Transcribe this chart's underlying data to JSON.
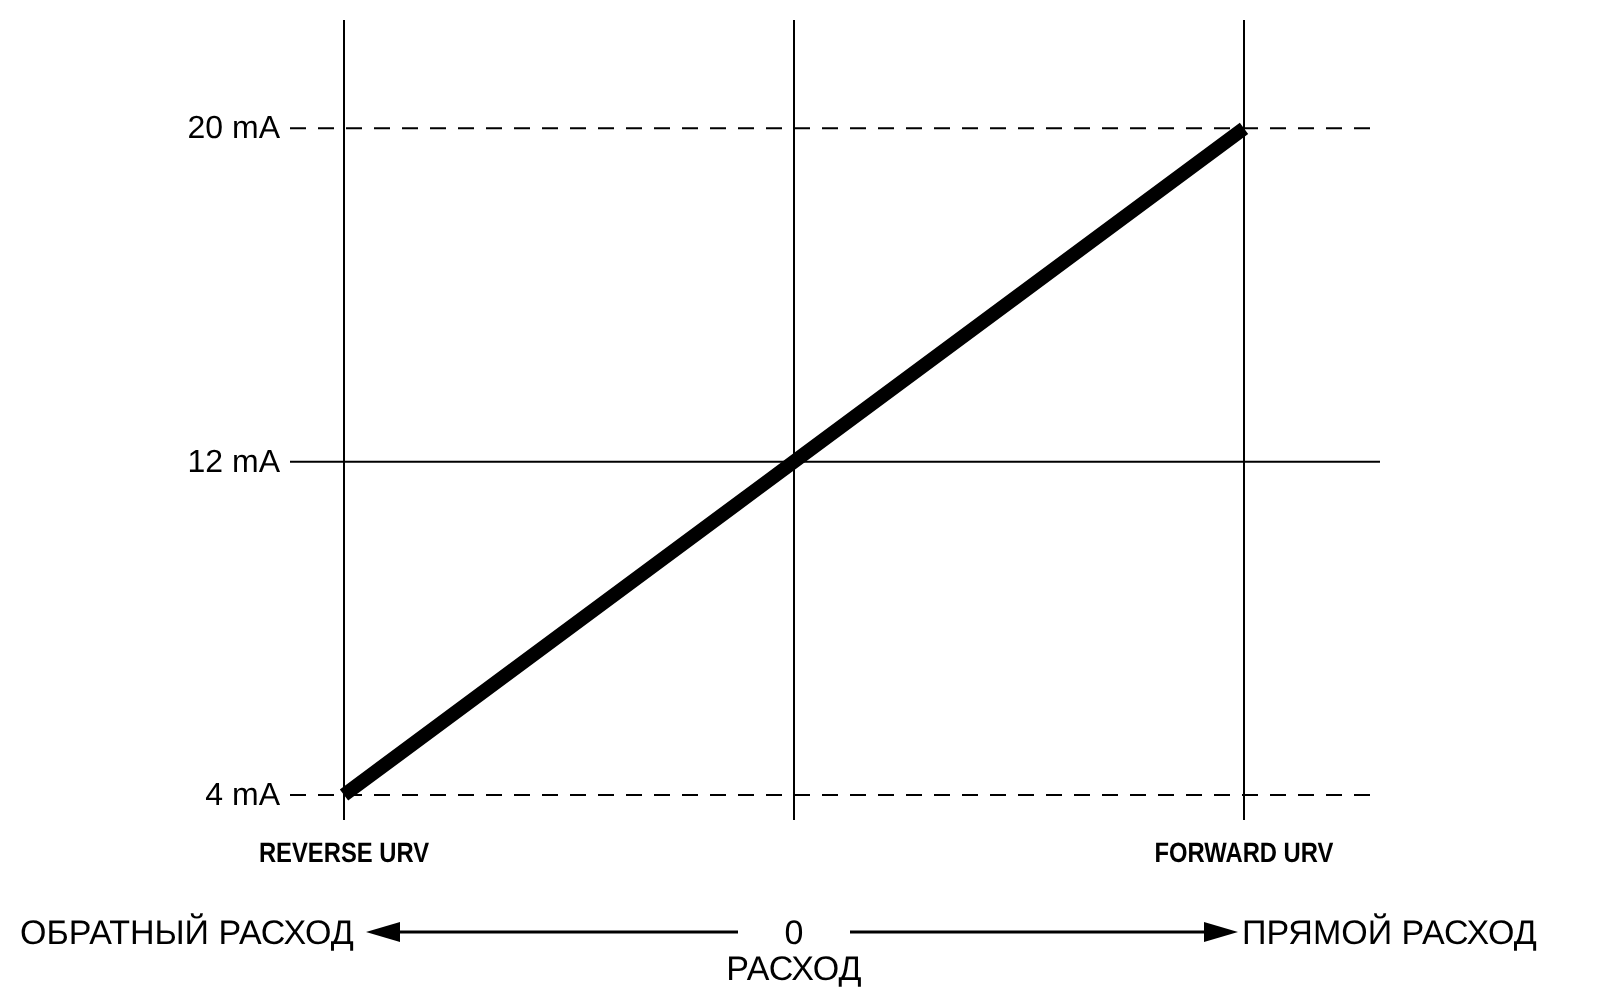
{
  "chart_data": {
    "type": "line",
    "xlabel": "РАСХОД",
    "categories": [
      "REVERSE URV",
      null,
      "FORWARD URV"
    ],
    "series": [
      {
        "color": "#000000",
        "values": [
          4,
          12,
          20
        ]
      }
    ],
    "ylim": [
      3.4,
      22.6
    ],
    "yticks": [
      {
        "value": 4,
        "label": "4 mA"
      },
      {
        "value": 12,
        "label": "12 mA"
      },
      {
        "value": 20,
        "label": "20 mA"
      }
    ],
    "grid": "x",
    "ref_lines": [
      {
        "axis": "y",
        "value": 20,
        "line_style": "dashed"
      },
      {
        "axis": "y",
        "value": 12,
        "line_style": "solid"
      },
      {
        "axis": "y",
        "value": 4,
        "line_style": "dashed"
      }
    ],
    "annotations": [
      "ОБРАТНЫЙ РАСХОД",
      "0",
      "ПРЯМОЙ РАСХОД"
    ],
    "line_style": "solid",
    "marker": "none"
  }
}
